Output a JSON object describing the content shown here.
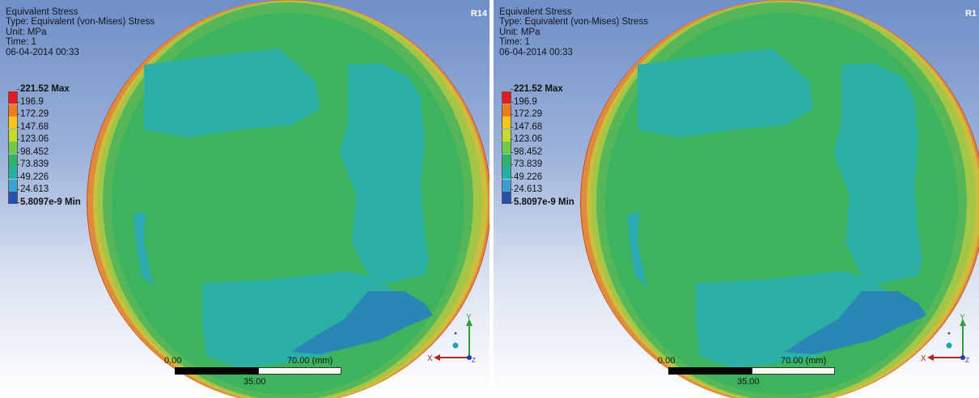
{
  "panels": [
    {
      "result_title": "Equivalent Stress",
      "result_type": "Type: Equivalent (von-Mises) Stress",
      "unit": "Unit: MPa",
      "time": "Time: 1",
      "date": "06-04-2014 00:33",
      "revision": "R14"
    },
    {
      "result_title": "Equivalent Stress",
      "result_type": "Type: Equivalent (von-Mises) Stress",
      "unit": "Unit: MPa",
      "time": "Time: 1",
      "date": "06-04-2014 00:33",
      "revision": "R1"
    }
  ],
  "legend": {
    "labels": [
      "221.52 Max",
      "196.9",
      "172.29",
      "147.68",
      "123.06",
      "98.452",
      "73.839",
      "49.226",
      "24.613",
      "5.8097e-9 Min"
    ],
    "colors": [
      "#e11b22",
      "#f07b1e",
      "#f6c51b",
      "#c6dc2c",
      "#73c94a",
      "#2fb36a",
      "#21b4a4",
      "#3a9fd3",
      "#2a4fa8"
    ]
  },
  "scale_bar": {
    "start_label": "0.00",
    "mid_label": "35.00",
    "end_label": "70.00 (mm)"
  },
  "triad": {
    "x_label": "X",
    "y_label": "Y",
    "z_label": "Z"
  },
  "contour_colors": {
    "outer_red": "#cc3a2a",
    "orange": "#df8a3a",
    "yellow": "#cdbd3c",
    "lime": "#9ec444",
    "green": "#44b457",
    "teal": "#28ae88",
    "cyan": "#2aa9b6",
    "blue": "#2b86b8"
  }
}
